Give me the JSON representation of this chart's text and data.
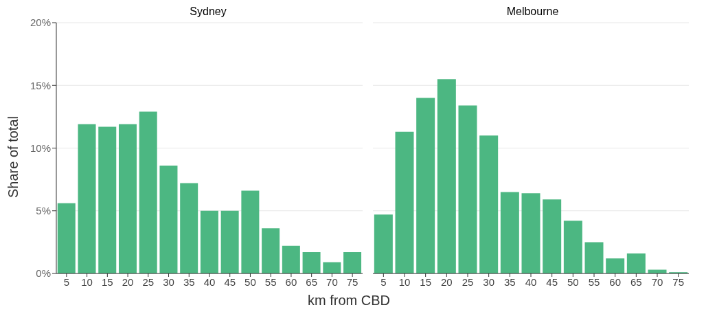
{
  "chart_data": [
    {
      "type": "bar",
      "title": "Sydney",
      "ylabel": "Share of total",
      "xlabel": "km from CBD",
      "categories": [
        "5",
        "10",
        "15",
        "20",
        "25",
        "30",
        "35",
        "40",
        "45",
        "50",
        "55",
        "60",
        "65",
        "70",
        "75"
      ],
      "values": [
        5.6,
        11.9,
        11.7,
        11.9,
        12.9,
        8.6,
        7.2,
        5.0,
        5.0,
        6.6,
        3.6,
        2.2,
        1.7,
        0.9,
        1.7
      ],
      "color": "#4cb782",
      "ylim": [
        0,
        20
      ],
      "yticks": [
        {
          "value": 0,
          "label": "0%"
        },
        {
          "value": 5,
          "label": "5%"
        },
        {
          "value": 10,
          "label": "10%"
        },
        {
          "value": 15,
          "label": "15%"
        },
        {
          "value": 20,
          "label": "20%"
        }
      ],
      "grid": "y"
    },
    {
      "type": "bar",
      "title": "Melbourne",
      "categories": [
        "5",
        "10",
        "15",
        "20",
        "25",
        "30",
        "35",
        "40",
        "45",
        "50",
        "55",
        "60",
        "65",
        "70",
        "75"
      ],
      "values": [
        4.7,
        11.3,
        14.0,
        15.5,
        13.4,
        11.0,
        6.5,
        6.4,
        5.9,
        4.2,
        2.5,
        1.2,
        1.6,
        0.3,
        0.1
      ],
      "color": "#4cb782",
      "ylim": [
        0,
        20
      ],
      "yticks": [
        0,
        5,
        10,
        15,
        20
      ],
      "grid": "y",
      "tick_labels": "x"
    }
  ]
}
